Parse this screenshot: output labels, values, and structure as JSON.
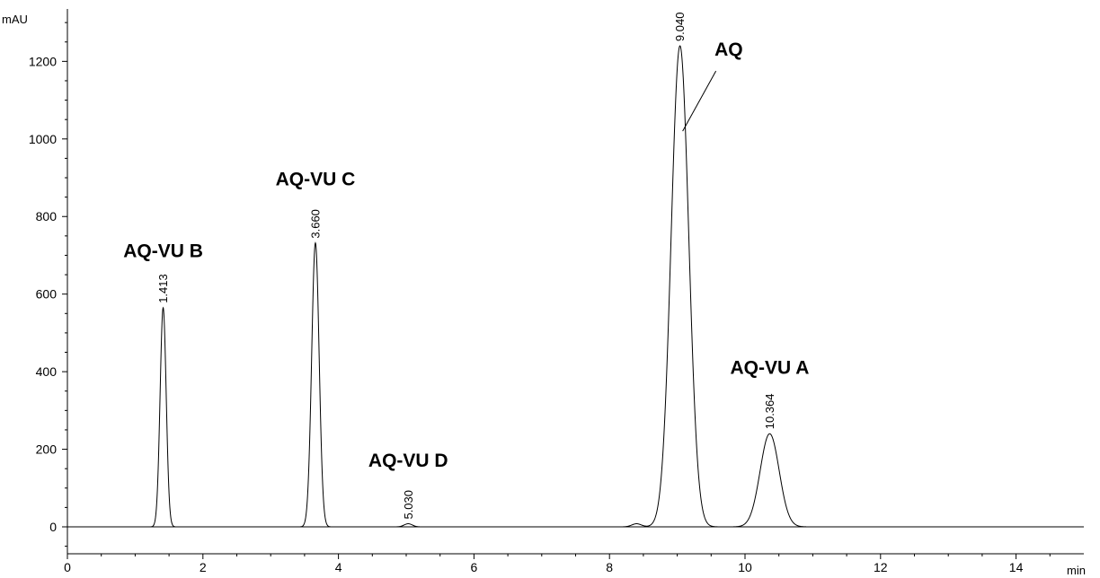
{
  "chart_data": {
    "type": "line",
    "title": "",
    "xlabel": "min",
    "ylabel": "mAU",
    "xlim": [
      0,
      15
    ],
    "ylim": [
      -60,
      1320
    ],
    "x_ticks": [
      0,
      2,
      4,
      6,
      8,
      10,
      12,
      14
    ],
    "y_ticks": [
      0,
      200,
      400,
      600,
      800,
      1000,
      1200
    ],
    "grid": false,
    "series": [
      {
        "peaks": [
          {
            "rt": 1.413,
            "height": 565,
            "sigma": 0.045,
            "rt_label": "1.413",
            "name": "AQ-VU B"
          },
          {
            "rt": 3.66,
            "height": 732,
            "sigma": 0.055,
            "rt_label": "3.660",
            "name": "AQ-VU C"
          },
          {
            "rt": 5.03,
            "height": 8,
            "sigma": 0.06,
            "rt_label": "5.030",
            "name": "AQ-VU D"
          },
          {
            "rt": 9.04,
            "height": 1240,
            "sigma": 0.13,
            "rt_label": "9.040",
            "name": "AQ"
          },
          {
            "rt": 10.364,
            "height": 240,
            "sigma": 0.14,
            "rt_label": "10.364",
            "name": "AQ-VU A"
          }
        ],
        "minor_peaks": [
          {
            "rt": 8.4,
            "height": 8,
            "sigma": 0.07
          }
        ]
      }
    ]
  }
}
